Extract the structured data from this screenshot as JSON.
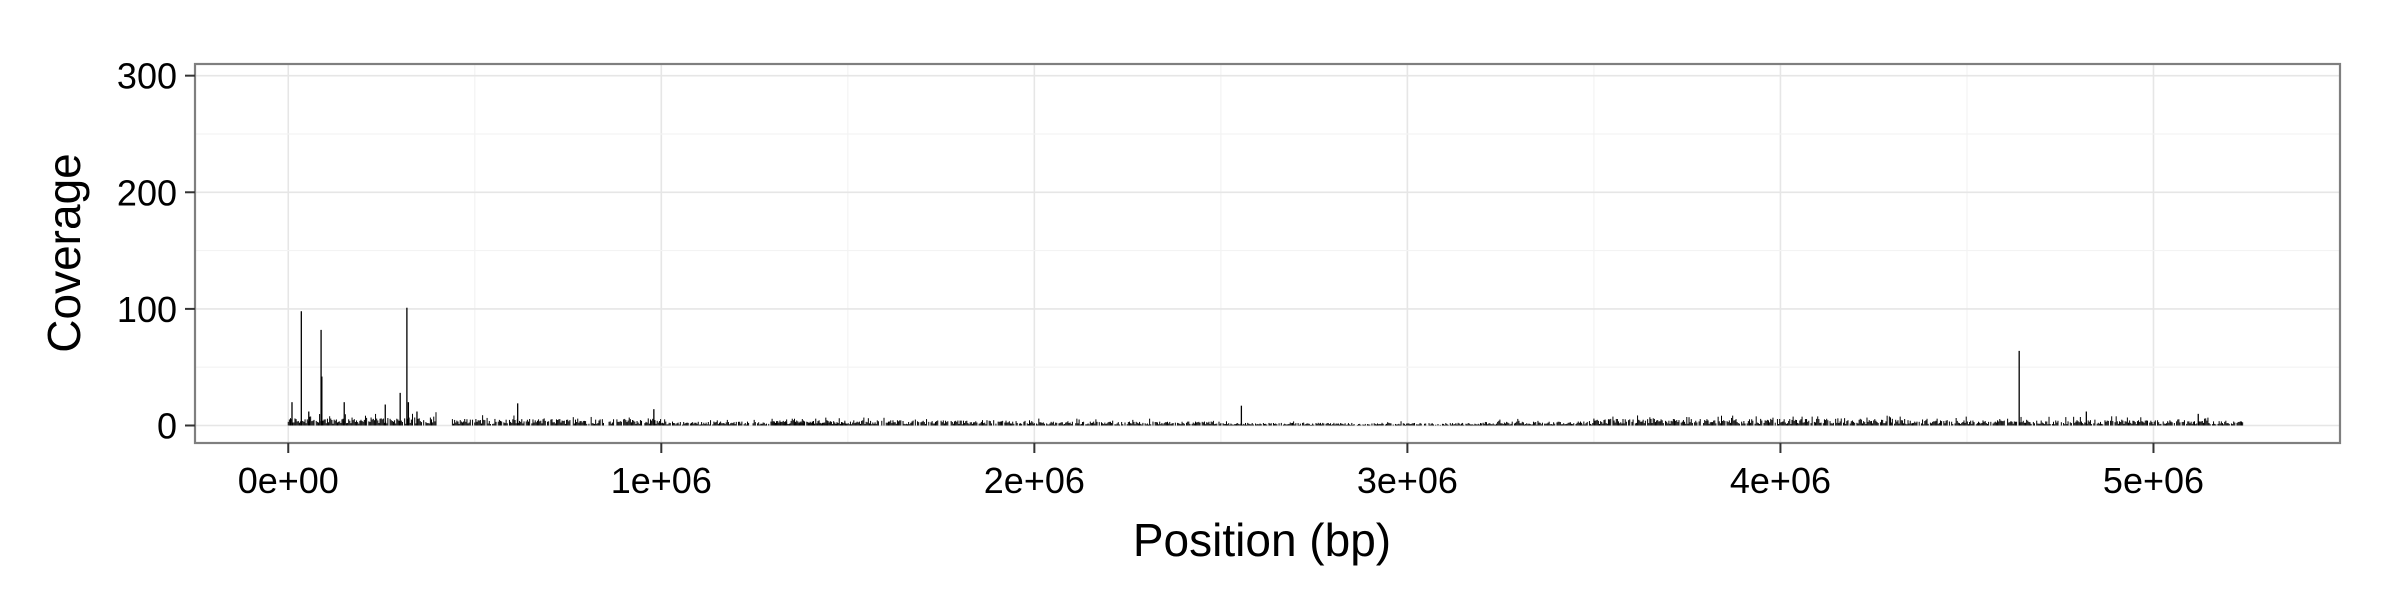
{
  "chart_data": {
    "type": "bar",
    "xlabel": "Position (bp)",
    "ylabel": "Coverage",
    "xlim": [
      -250000,
      5500000
    ],
    "ylim": [
      -15,
      310
    ],
    "x_ticks": [
      0,
      1000000,
      2000000,
      3000000,
      4000000,
      5000000
    ],
    "x_tick_labels": [
      "0e+00",
      "1e+06",
      "2e+06",
      "3e+06",
      "4e+06",
      "5e+06"
    ],
    "y_ticks": [
      0,
      100,
      200,
      300
    ],
    "y_tick_labels": [
      "0",
      "100",
      "200",
      "300"
    ],
    "grid": true,
    "legend": "none",
    "bar_color": "#000000",
    "segments": [
      {
        "start": 0,
        "end": 400000,
        "typical": 6,
        "max": 12
      },
      {
        "start": 440000,
        "end": 1000000,
        "typical": 5,
        "max": 9
      },
      {
        "start": 1000000,
        "end": 1500000,
        "typical": 3,
        "max": 6
      },
      {
        "start": 1300000,
        "end": 2000000,
        "typical": 4,
        "max": 7
      },
      {
        "start": 2000000,
        "end": 2500000,
        "typical": 3,
        "max": 6
      },
      {
        "start": 2500000,
        "end": 3200000,
        "typical": 2,
        "max": 4
      },
      {
        "start": 3200000,
        "end": 3500000,
        "typical": 3,
        "max": 6
      },
      {
        "start": 3500000,
        "end": 4300000,
        "typical": 5,
        "max": 9
      },
      {
        "start": 4300000,
        "end": 5240000,
        "typical": 4,
        "max": 8
      }
    ],
    "peaks": [
      {
        "x": 10000,
        "y": 20
      },
      {
        "x": 35000,
        "y": 98
      },
      {
        "x": 55000,
        "y": 12
      },
      {
        "x": 88000,
        "y": 82
      },
      {
        "x": 90000,
        "y": 42
      },
      {
        "x": 150000,
        "y": 20
      },
      {
        "x": 260000,
        "y": 18
      },
      {
        "x": 300000,
        "y": 28
      },
      {
        "x": 318000,
        "y": 101
      },
      {
        "x": 322000,
        "y": 20
      },
      {
        "x": 345000,
        "y": 12
      },
      {
        "x": 615000,
        "y": 19
      },
      {
        "x": 980000,
        "y": 14
      },
      {
        "x": 2555000,
        "y": 17
      },
      {
        "x": 4640000,
        "y": 64
      },
      {
        "x": 4820000,
        "y": 12
      },
      {
        "x": 5120000,
        "y": 10
      }
    ]
  }
}
